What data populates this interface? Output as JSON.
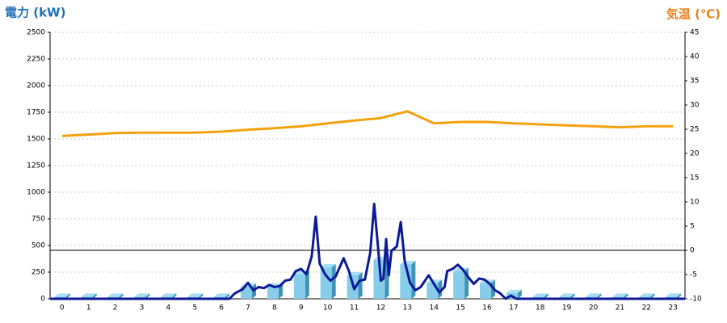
{
  "chart_data": {
    "type": "combo",
    "y_label": "電力 (kW)",
    "y_label_color": "#1f6fb8",
    "y2_label": "気温 (℃)",
    "y2_label_color": "#e8821e",
    "categories": [
      "0",
      "1",
      "2",
      "3",
      "4",
      "5",
      "6",
      "7",
      "8",
      "9",
      "10",
      "11",
      "12",
      "13",
      "14",
      "15",
      "16",
      "17",
      "18",
      "19",
      "20",
      "21",
      "22",
      "23"
    ],
    "xlim": [
      -0.45,
      23.45
    ],
    "ylim": [
      0,
      2500
    ],
    "yticks": [
      0,
      250,
      500,
      750,
      1000,
      1250,
      1500,
      1750,
      2000,
      2250,
      2500
    ],
    "y2lim": [
      -10,
      45
    ],
    "y2ticks": [
      -10,
      -5,
      0,
      5,
      10,
      15,
      20,
      25,
      30,
      35,
      40,
      45
    ],
    "grid": true,
    "series": [
      {
        "type": "bar",
        "color": "#87cdea",
        "values": [
          20,
          20,
          20,
          20,
          20,
          20,
          20,
          115,
          115,
          230,
          295,
          220,
          365,
          325,
          150,
          260,
          150,
          55,
          20,
          20,
          20,
          20,
          20,
          20
        ]
      },
      {
        "type": "line",
        "color": "#0a1a96",
        "x": [
          -0.45,
          6.3,
          6.5,
          6.8,
          7.0,
          7.2,
          7.4,
          7.6,
          7.8,
          8.0,
          8.2,
          8.4,
          8.6,
          8.8,
          9.0,
          9.2,
          9.4,
          9.55,
          9.7,
          9.9,
          10.1,
          10.3,
          10.6,
          10.8,
          11.0,
          11.2,
          11.4,
          11.6,
          11.75,
          11.9,
          12.0,
          12.1,
          12.2,
          12.3,
          12.4,
          12.6,
          12.75,
          12.9,
          13.1,
          13.3,
          13.5,
          13.8,
          14.0,
          14.2,
          14.4,
          14.5,
          14.7,
          14.9,
          15.1,
          15.3,
          15.5,
          15.7,
          15.9,
          16.1,
          16.3,
          16.5,
          16.7,
          16.9,
          17.1,
          23.45
        ],
        "values": [
          0,
          0,
          50,
          90,
          150,
          80,
          110,
          100,
          130,
          110,
          120,
          170,
          180,
          260,
          280,
          230,
          400,
          770,
          330,
          230,
          170,
          210,
          380,
          260,
          90,
          170,
          180,
          430,
          890,
          470,
          170,
          190,
          560,
          220,
          450,
          490,
          720,
          350,
          150,
          80,
          110,
          220,
          140,
          60,
          110,
          260,
          280,
          320,
          270,
          200,
          140,
          190,
          180,
          140,
          80,
          50,
          0,
          30,
          0,
          0
        ]
      },
      {
        "type": "line",
        "axis": "y2",
        "color": "#f5a10f",
        "values": [
          23.6,
          23.9,
          24.2,
          24.3,
          24.3,
          24.3,
          24.5,
          24.9,
          25.2,
          25.6,
          26.2,
          26.8,
          27.3,
          28.7,
          26.2,
          26.5,
          26.5,
          26.2,
          26.0,
          25.8,
          25.6,
          25.4,
          25.6,
          25.6
        ]
      }
    ]
  }
}
